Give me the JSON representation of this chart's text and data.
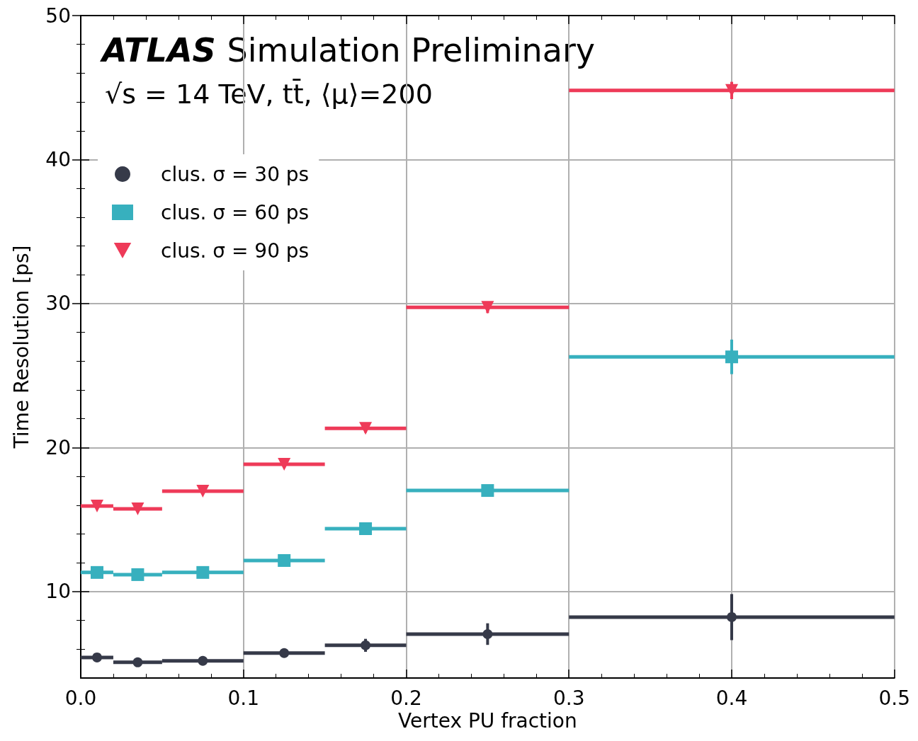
{
  "chart_data": {
    "type": "scatter",
    "title": "ATLAS Simulation Preliminary",
    "subtitle": "√s = 14 TeV, tt̄, ⟨μ⟩=200",
    "xlabel": "Vertex PU fraction",
    "ylabel": "Time Resolution [ps]",
    "x": [
      0.01,
      0.035,
      0.075,
      0.125,
      0.175,
      0.25,
      0.4
    ],
    "series": [
      {
        "name": "clus. σ = 30 ps",
        "color": "#363a49",
        "marker": "circle",
        "xerrors": [
          0.01,
          0.015,
          0.025,
          0.025,
          0.025,
          0.05,
          0.1
        ],
        "values": [
          5.43,
          5.09,
          5.19,
          5.73,
          6.27,
          7.05,
          8.23
        ],
        "errors": [
          0.15,
          0.15,
          0.15,
          0.2,
          0.45,
          0.75,
          1.6
        ]
      },
      {
        "name": "clus. σ = 60 ps",
        "color": "#37b0be",
        "marker": "square",
        "xerrors": [
          0.01,
          0.015,
          0.025,
          0.025,
          0.025,
          0.05,
          0.1
        ],
        "values": [
          11.33,
          11.18,
          11.33,
          12.16,
          14.37,
          17.02,
          26.3
        ],
        "errors": [
          0.2,
          0.2,
          0.2,
          0.25,
          0.3,
          0.4,
          1.2
        ]
      },
      {
        "name": "clus. σ = 90 ps",
        "color": "#ee3a58",
        "marker": "triangle_down",
        "xerrors": [
          0.01,
          0.015,
          0.025,
          0.025,
          0.025,
          0.05,
          0.1
        ],
        "values": [
          15.94,
          15.74,
          16.97,
          18.84,
          21.34,
          29.74,
          44.8
        ],
        "errors": [
          0.2,
          0.2,
          0.2,
          0.25,
          0.3,
          0.4,
          0.6
        ]
      }
    ],
    "xlim": [
      0,
      0.5
    ],
    "ylim": [
      4,
      50
    ],
    "xticks": [
      {
        "value": 0,
        "label": "0.0"
      },
      0.1,
      0.2,
      0.3,
      0.4,
      0.5
    ],
    "yticks": [
      10,
      20,
      30,
      40,
      50
    ],
    "grid": true,
    "legend": "top left"
  }
}
